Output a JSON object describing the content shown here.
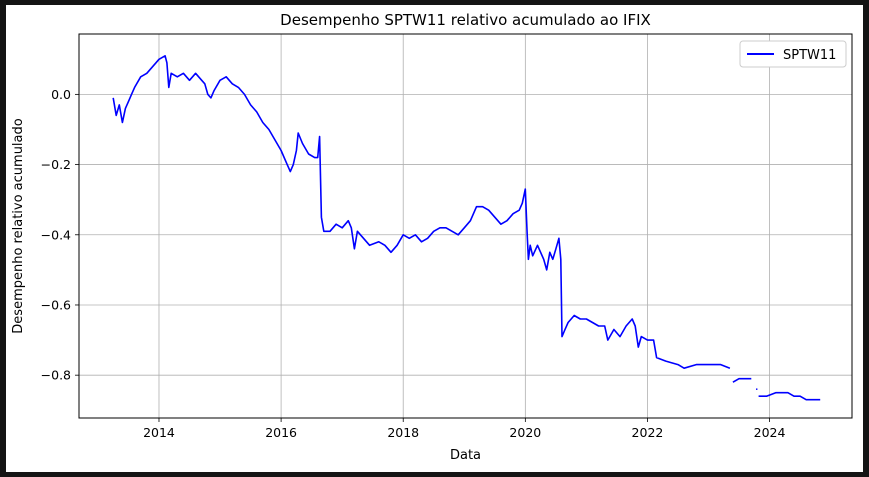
{
  "chart_data": {
    "type": "line",
    "title": "Desempenho SPTW11 relativo acumulado ao IFIX",
    "xlabel": "Data",
    "ylabel": "Desempenho relativo acumulado",
    "xlim": [
      2012.69,
      2025.35
    ],
    "ylim": [
      -0.922,
      0.172
    ],
    "x_ticks": [
      2014,
      2016,
      2018,
      2020,
      2022,
      2024
    ],
    "x_tick_labels": [
      "2014",
      "2016",
      "2018",
      "2020",
      "2022",
      "2024"
    ],
    "y_ticks": [
      0.0,
      -0.2,
      -0.4,
      -0.6,
      -0.8
    ],
    "y_tick_labels": [
      "0.0",
      "−0.2",
      "−0.4",
      "−0.6",
      "−0.8"
    ],
    "grid": true,
    "legend": {
      "placement": "upper right",
      "entries": [
        "SPTW11"
      ]
    },
    "series": [
      {
        "name": "SPTW11",
        "color": "#0000ff",
        "segments": [
          [
            [
              2013.25,
              -0.01
            ],
            [
              2013.3,
              -0.06
            ],
            [
              2013.35,
              -0.03
            ],
            [
              2013.4,
              -0.08
            ],
            [
              2013.45,
              -0.04
            ],
            [
              2013.5,
              -0.02
            ],
            [
              2013.55,
              0.0
            ],
            [
              2013.6,
              0.02
            ],
            [
              2013.7,
              0.05
            ],
            [
              2013.8,
              0.06
            ],
            [
              2013.9,
              0.08
            ],
            [
              2014.0,
              0.1
            ],
            [
              2014.1,
              0.11
            ],
            [
              2014.13,
              0.09
            ],
            [
              2014.16,
              0.02
            ],
            [
              2014.2,
              0.06
            ],
            [
              2014.3,
              0.05
            ],
            [
              2014.4,
              0.06
            ],
            [
              2014.5,
              0.04
            ],
            [
              2014.6,
              0.06
            ],
            [
              2014.7,
              0.04
            ],
            [
              2014.75,
              0.03
            ],
            [
              2014.8,
              0.0
            ],
            [
              2014.85,
              -0.01
            ],
            [
              2014.9,
              0.01
            ],
            [
              2015.0,
              0.04
            ],
            [
              2015.1,
              0.05
            ],
            [
              2015.2,
              0.03
            ],
            [
              2015.3,
              0.02
            ],
            [
              2015.4,
              0.0
            ],
            [
              2015.5,
              -0.03
            ],
            [
              2015.6,
              -0.05
            ],
            [
              2015.7,
              -0.08
            ],
            [
              2015.8,
              -0.1
            ],
            [
              2015.9,
              -0.13
            ],
            [
              2016.0,
              -0.16
            ],
            [
              2016.1,
              -0.2
            ],
            [
              2016.15,
              -0.22
            ],
            [
              2016.2,
              -0.2
            ],
            [
              2016.25,
              -0.16
            ],
            [
              2016.28,
              -0.11
            ],
            [
              2016.35,
              -0.14
            ],
            [
              2016.45,
              -0.17
            ],
            [
              2016.55,
              -0.18
            ],
            [
              2016.6,
              -0.18
            ],
            [
              2016.63,
              -0.12
            ],
            [
              2016.66,
              -0.35
            ],
            [
              2016.7,
              -0.39
            ],
            [
              2016.8,
              -0.39
            ],
            [
              2016.9,
              -0.37
            ],
            [
              2017.0,
              -0.38
            ],
            [
              2017.1,
              -0.36
            ],
            [
              2017.15,
              -0.38
            ],
            [
              2017.2,
              -0.44
            ],
            [
              2017.25,
              -0.39
            ],
            [
              2017.35,
              -0.41
            ],
            [
              2017.45,
              -0.43
            ],
            [
              2017.6,
              -0.42
            ],
            [
              2017.7,
              -0.43
            ],
            [
              2017.8,
              -0.45
            ],
            [
              2017.9,
              -0.43
            ],
            [
              2018.0,
              -0.4
            ],
            [
              2018.1,
              -0.41
            ],
            [
              2018.2,
              -0.4
            ],
            [
              2018.3,
              -0.42
            ],
            [
              2018.4,
              -0.41
            ],
            [
              2018.5,
              -0.39
            ],
            [
              2018.6,
              -0.38
            ],
            [
              2018.7,
              -0.38
            ],
            [
              2018.8,
              -0.39
            ],
            [
              2018.9,
              -0.4
            ],
            [
              2019.0,
              -0.38
            ],
            [
              2019.1,
              -0.36
            ],
            [
              2019.2,
              -0.32
            ],
            [
              2019.3,
              -0.32
            ],
            [
              2019.4,
              -0.33
            ],
            [
              2019.5,
              -0.35
            ],
            [
              2019.6,
              -0.37
            ],
            [
              2019.7,
              -0.36
            ],
            [
              2019.8,
              -0.34
            ],
            [
              2019.9,
              -0.33
            ],
            [
              2019.95,
              -0.31
            ],
            [
              2020.0,
              -0.27
            ],
            [
              2020.03,
              -0.4
            ],
            [
              2020.05,
              -0.47
            ],
            [
              2020.08,
              -0.43
            ],
            [
              2020.12,
              -0.46
            ],
            [
              2020.2,
              -0.43
            ],
            [
              2020.3,
              -0.47
            ],
            [
              2020.35,
              -0.5
            ],
            [
              2020.4,
              -0.45
            ],
            [
              2020.45,
              -0.47
            ],
            [
              2020.5,
              -0.44
            ],
            [
              2020.55,
              -0.41
            ],
            [
              2020.58,
              -0.47
            ],
            [
              2020.6,
              -0.69
            ],
            [
              2020.65,
              -0.67
            ],
            [
              2020.7,
              -0.65
            ],
            [
              2020.8,
              -0.63
            ],
            [
              2020.9,
              -0.64
            ],
            [
              2021.0,
              -0.64
            ],
            [
              2021.1,
              -0.65
            ],
            [
              2021.2,
              -0.66
            ],
            [
              2021.3,
              -0.66
            ],
            [
              2021.35,
              -0.7
            ],
            [
              2021.45,
              -0.67
            ],
            [
              2021.55,
              -0.69
            ],
            [
              2021.65,
              -0.66
            ],
            [
              2021.75,
              -0.64
            ],
            [
              2021.8,
              -0.66
            ],
            [
              2021.85,
              -0.72
            ],
            [
              2021.9,
              -0.69
            ],
            [
              2022.0,
              -0.7
            ],
            [
              2022.1,
              -0.7
            ],
            [
              2022.15,
              -0.75
            ],
            [
              2022.3,
              -0.76
            ],
            [
              2022.5,
              -0.77
            ],
            [
              2022.6,
              -0.78
            ],
            [
              2022.8,
              -0.77
            ],
            [
              2023.0,
              -0.77
            ],
            [
              2023.2,
              -0.77
            ],
            [
              2023.35,
              -0.78
            ]
          ],
          [
            [
              2023.4,
              -0.82
            ],
            [
              2023.5,
              -0.81
            ],
            [
              2023.6,
              -0.81
            ],
            [
              2023.7,
              -0.81
            ]
          ],
          [
            [
              2023.78,
              -0.84
            ],
            [
              2023.8,
              -0.84
            ]
          ],
          [
            [
              2023.82,
              -0.86
            ],
            [
              2023.95,
              -0.86
            ],
            [
              2024.1,
              -0.85
            ],
            [
              2024.2,
              -0.85
            ],
            [
              2024.3,
              -0.85
            ],
            [
              2024.4,
              -0.86
            ],
            [
              2024.5,
              -0.86
            ],
            [
              2024.6,
              -0.87
            ],
            [
              2024.75,
              -0.87
            ],
            [
              2024.83,
              -0.87
            ]
          ]
        ]
      }
    ]
  }
}
